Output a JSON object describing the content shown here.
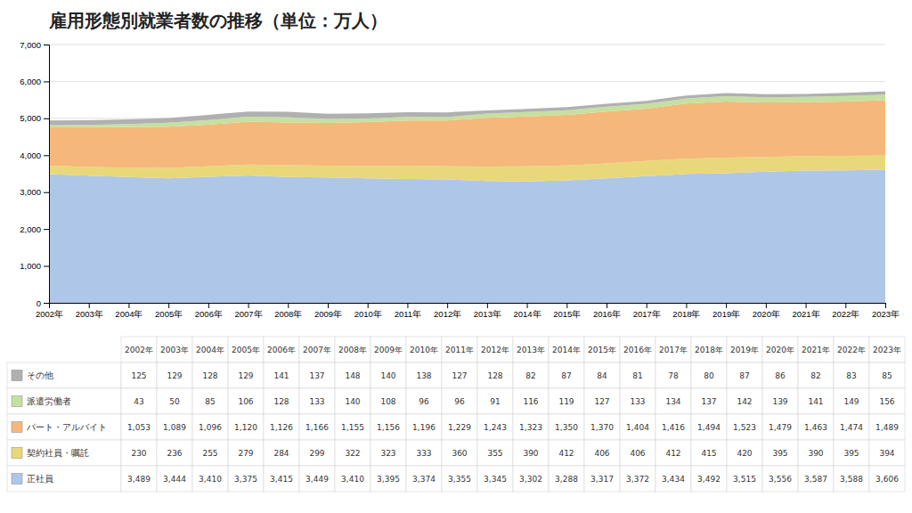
{
  "chart_data": {
    "type": "area",
    "title": "雇用形態別就業者数の推移（単位：万人）",
    "stacked": true,
    "grid": true,
    "x": [
      2002,
      2003,
      2004,
      2005,
      2006,
      2007,
      2008,
      2009,
      2010,
      2011,
      2012,
      2013,
      2014,
      2015,
      2016,
      2017,
      2018,
      2019,
      2020,
      2021,
      2022,
      2023
    ],
    "xlim": [
      2002,
      2023
    ],
    "xticks": [
      {
        "value": 2002,
        "label": "2002年"
      },
      {
        "value": 2003,
        "label": "2003年"
      },
      {
        "value": 2004,
        "label": "2004年"
      },
      {
        "value": 2005,
        "label": "2005年"
      },
      {
        "value": 2006,
        "label": "2006年"
      },
      {
        "value": 2007,
        "label": "2007年"
      },
      {
        "value": 2008,
        "label": "2008年"
      },
      {
        "value": 2009,
        "label": "2009年"
      },
      {
        "value": 2010,
        "label": "2010年"
      },
      {
        "value": 2011,
        "label": "2011年"
      },
      {
        "value": 2012,
        "label": "2012年"
      },
      {
        "value": 2013,
        "label": "2013年"
      },
      {
        "value": 2014,
        "label": "2014年"
      },
      {
        "value": 2015,
        "label": "2015年"
      },
      {
        "value": 2016,
        "label": "2016年"
      },
      {
        "value": 2017,
        "label": "2017年"
      },
      {
        "value": 2018,
        "label": "2018年"
      },
      {
        "value": 2019,
        "label": "2019年"
      },
      {
        "value": 2020,
        "label": "2020年"
      },
      {
        "value": 2021,
        "label": "2021年"
      },
      {
        "value": 2022,
        "label": "2022年"
      },
      {
        "value": 2023,
        "label": "2023年"
      }
    ],
    "ylim": [
      0,
      7000
    ],
    "yticks": [
      0,
      {
        "value": 1000,
        "label": "1,000"
      },
      {
        "value": 2000,
        "label": "2,000"
      },
      {
        "value": 3000,
        "label": "3,000"
      },
      {
        "value": 4000,
        "label": "4,000"
      },
      {
        "value": 5000,
        "label": "5,000"
      },
      {
        "value": 6000,
        "label": "6,000"
      },
      {
        "value": 7000,
        "label": "7,000"
      }
    ],
    "series": [
      {
        "name": "正社員",
        "color": "#aec6e8",
        "values": [
          3489,
          3444,
          3410,
          3375,
          3415,
          3449,
          3410,
          3395,
          3374,
          3355,
          3345,
          3302,
          3288,
          3317,
          3372,
          3434,
          3492,
          3515,
          3556,
          3587,
          3588,
          3606
        ],
        "value_labels": [
          "3,489",
          "3,444",
          "3,410",
          "3,375",
          "3,415",
          "3,449",
          "3,410",
          "3,395",
          "3,374",
          "3,355",
          "3,345",
          "3,302",
          "3,288",
          "3,317",
          "3,372",
          "3,434",
          "3,492",
          "3,515",
          "3,556",
          "3,587",
          "3,588",
          "3,606"
        ]
      },
      {
        "name": "契約社員・嘱託",
        "color": "#e8d87a",
        "values": [
          230,
          236,
          255,
          279,
          284,
          299,
          322,
          323,
          333,
          360,
          355,
          390,
          412,
          406,
          406,
          412,
          415,
          420,
          395,
          390,
          395,
          394
        ],
        "value_labels": [
          "230",
          "236",
          "255",
          "279",
          "284",
          "299",
          "322",
          "323",
          "333",
          "360",
          "355",
          "390",
          "412",
          "406",
          "406",
          "412",
          "415",
          "420",
          "395",
          "390",
          "395",
          "394"
        ]
      },
      {
        "name": "パート・アルバイト",
        "color": "#f5b87a",
        "values": [
          1053,
          1089,
          1096,
          1120,
          1126,
          1166,
          1155,
          1156,
          1196,
          1229,
          1243,
          1323,
          1350,
          1370,
          1404,
          1416,
          1494,
          1523,
          1479,
          1463,
          1474,
          1489
        ],
        "value_labels": [
          "1,053",
          "1,089",
          "1,096",
          "1,120",
          "1,126",
          "1,166",
          "1,155",
          "1,156",
          "1,196",
          "1,229",
          "1,243",
          "1,323",
          "1,350",
          "1,370",
          "1,404",
          "1,416",
          "1,494",
          "1,523",
          "1,479",
          "1,463",
          "1,474",
          "1,489"
        ]
      },
      {
        "name": "派遣労働者",
        "color": "#c5e0a0",
        "values": [
          43,
          50,
          85,
          106,
          128,
          133,
          140,
          108,
          96,
          96,
          91,
          116,
          119,
          127,
          133,
          134,
          137,
          142,
          139,
          141,
          149,
          156
        ],
        "value_labels": [
          "43",
          "50",
          "85",
          "106",
          "128",
          "133",
          "140",
          "108",
          "96",
          "96",
          "91",
          "116",
          "119",
          "127",
          "133",
          "134",
          "137",
          "142",
          "139",
          "141",
          "149",
          "156"
        ]
      },
      {
        "name": "その他",
        "color": "#b0b0b0",
        "values": [
          125,
          129,
          128,
          129,
          141,
          137,
          148,
          140,
          138,
          127,
          128,
          82,
          87,
          84,
          81,
          78,
          80,
          87,
          86,
          82,
          83,
          85
        ],
        "value_labels": [
          "125",
          "129",
          "128",
          "129",
          "141",
          "137",
          "148",
          "140",
          "138",
          "127",
          "128",
          "82",
          "87",
          "84",
          "81",
          "78",
          "80",
          "87",
          "86",
          "82",
          "83",
          "85"
        ]
      }
    ]
  }
}
